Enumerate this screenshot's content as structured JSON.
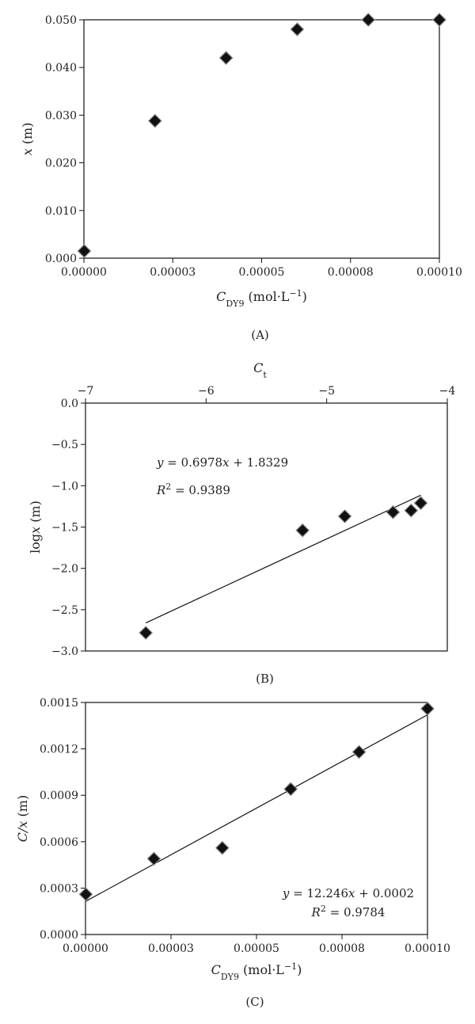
{
  "chart_data": [
    {
      "type": "scatter",
      "caption": "(A)",
      "xlabel": "C_DY9 (mol·L^-1)",
      "ylabel": "x (m)",
      "xlim": [
        0,
        0.0001
      ],
      "ylim": [
        0,
        0.05
      ],
      "x_ticks": [
        "0.00000",
        "0.00003",
        "0.00005",
        "0.00008",
        "0.00010"
      ],
      "x_tick_values": [
        0,
        2.5e-05,
        5e-05,
        7.5e-05,
        0.0001
      ],
      "y_ticks": [
        "0.000",
        "0.010",
        "0.020",
        "0.030",
        "0.040",
        "0.050"
      ],
      "y_tick_values": [
        0,
        0.01,
        0.02,
        0.03,
        0.04,
        0.05
      ],
      "x": [
        1e-07,
        2e-05,
        4e-05,
        6e-05,
        8e-05,
        0.0001
      ],
      "y": [
        0.0015,
        0.0288,
        0.042,
        0.048,
        0.05,
        0.05
      ]
    },
    {
      "type": "scatter",
      "caption": "(B)",
      "top_xlabel": "C_t",
      "ylabel": "logx (m)",
      "xlim": [
        -7,
        -4
      ],
      "ylim": [
        -3.0,
        0.0
      ],
      "x_ticks": [
        "−7",
        "−6",
        "−5",
        "−4"
      ],
      "x_tick_values": [
        -7,
        -6,
        -5,
        -4
      ],
      "y_ticks": [
        "0.0",
        "−0.5",
        "−1.0",
        "−1.5",
        "−2.0",
        "−2.5",
        "−3.0"
      ],
      "y_tick_values": [
        0,
        -0.5,
        -1,
        -1.5,
        -2,
        -2.5,
        -3
      ],
      "x": [
        -6.5,
        -5.2,
        -4.85,
        -4.45,
        -4.3,
        -4.22
      ],
      "y": [
        -2.78,
        -1.54,
        -1.37,
        -1.32,
        -1.3,
        -1.21
      ],
      "fit_line": {
        "x": [
          -6.5,
          -4.22
        ],
        "y": [
          -2.66,
          -1.115
        ]
      },
      "equation": "y = 0.6978x + 1.8329",
      "r2": "R^2 = 0.9389"
    },
    {
      "type": "scatter",
      "caption": "(C)",
      "xlabel": "C_DY9 (mol·L^-1)",
      "ylabel": "C/x (m)",
      "xlim": [
        0,
        0.0001
      ],
      "ylim": [
        0,
        0.0015
      ],
      "x_ticks": [
        "0.00000",
        "0.00003",
        "0.00005",
        "0.00008",
        "0.00010"
      ],
      "x_tick_values": [
        0,
        2.5e-05,
        5e-05,
        7.5e-05,
        0.0001
      ],
      "y_ticks": [
        "0.0000",
        "0.0003",
        "0.0006",
        "0.0009",
        "0.0012",
        "0.0015"
      ],
      "y_tick_values": [
        0,
        0.0003,
        0.0006,
        0.0009,
        0.0012,
        0.0015
      ],
      "x": [
        1e-07,
        2e-05,
        4e-05,
        6e-05,
        8e-05,
        0.0001
      ],
      "y": [
        0.00026,
        0.00049,
        0.00056,
        0.00094,
        0.00118,
        0.00146
      ],
      "fit_line": {
        "x": [
          1e-07,
          0.0001
        ],
        "y": [
          0.000215,
          0.00142
        ]
      },
      "equation": "y = 12.246x + 0.0002",
      "r2": "R^2 = 0.9784"
    }
  ]
}
